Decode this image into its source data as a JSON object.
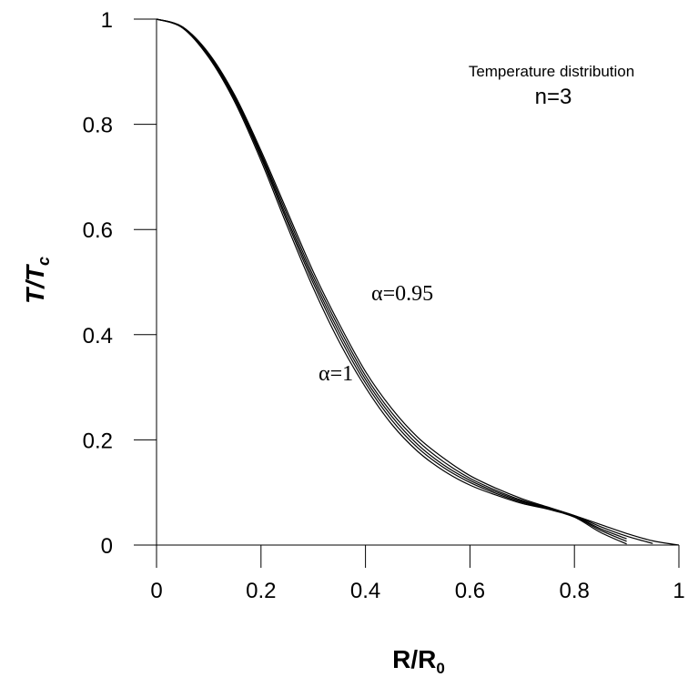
{
  "chart_data": {
    "type": "line",
    "title": "",
    "xlabel": "R/R",
    "xlabel_sub": "0",
    "ylabel": "T/T",
    "ylabel_sub": "c",
    "xlim": [
      0,
      1
    ],
    "ylim": [
      0,
      1
    ],
    "xticks": [
      "0",
      "0.2",
      "0.4",
      "0.6",
      "0.8",
      "1"
    ],
    "yticks": [
      "0",
      "0.2",
      "0.4",
      "0.6",
      "0.8",
      "1"
    ],
    "grid": false,
    "legend": "none",
    "line_color": "#000000",
    "annotations": {
      "box_title": "Temperature distribution",
      "n_label": "n=3",
      "alpha_high": "α=0.95",
      "alpha_low": "α=1"
    },
    "x": [
      0,
      0.05,
      0.1,
      0.15,
      0.2,
      0.25,
      0.3,
      0.35,
      0.4,
      0.45,
      0.5,
      0.55,
      0.6,
      0.65,
      0.7,
      0.75,
      0.8,
      0.85,
      0.9,
      0.95,
      1.0
    ],
    "series": [
      {
        "values": [
          1.0,
          0.985,
          0.935,
          0.855,
          0.75,
          0.635,
          0.52,
          0.42,
          0.33,
          0.26,
          0.205,
          0.165,
          0.132,
          0.108,
          0.088,
          0.072,
          0.056,
          0.039,
          0.022,
          0.008,
          0.0
        ]
      },
      {
        "values": [
          1.0,
          0.985,
          0.933,
          0.852,
          0.745,
          0.628,
          0.512,
          0.412,
          0.322,
          0.252,
          0.198,
          0.158,
          0.127,
          0.104,
          0.085,
          0.071,
          0.056,
          0.035,
          0.017,
          0.003,
          null
        ]
      },
      {
        "values": [
          1.0,
          0.984,
          0.931,
          0.849,
          0.741,
          0.621,
          0.505,
          0.404,
          0.315,
          0.245,
          0.191,
          0.152,
          0.123,
          0.101,
          0.083,
          0.07,
          0.055,
          0.031,
          0.012,
          null,
          null
        ]
      },
      {
        "values": [
          1.0,
          0.984,
          0.929,
          0.846,
          0.737,
          0.615,
          0.498,
          0.396,
          0.308,
          0.238,
          0.185,
          0.147,
          0.119,
          0.098,
          0.081,
          0.069,
          0.054,
          0.028,
          0.007,
          null,
          null
        ]
      },
      {
        "values": [
          1.0,
          0.983,
          0.927,
          0.842,
          0.731,
          0.607,
          0.489,
          0.386,
          0.3,
          0.23,
          0.178,
          0.141,
          0.114,
          0.095,
          0.079,
          0.068,
          0.053,
          0.024,
          0.002,
          null,
          null
        ]
      }
    ]
  }
}
